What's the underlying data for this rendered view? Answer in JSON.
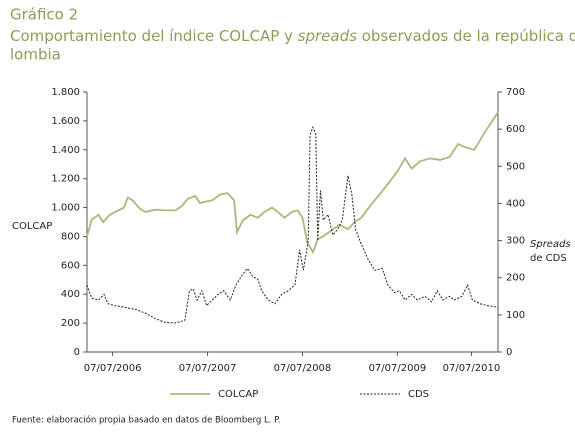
{
  "chart_data": {
    "type": "line",
    "title": "Gráfico 2",
    "subtitle": [
      "Comportamiento del índice COLCAP y ",
      "spreads",
      " observados de la república de Co-",
      "lombia"
    ],
    "ylabel": "COLCAP",
    "y2label": [
      "Spreads",
      "de CDS"
    ],
    "source": "Fuente: elaboración propia basado en datos de Bloomberg L. P.",
    "xlim": [
      2006.24,
      2010.57
    ],
    "xticks": [
      {
        "value": 2006.51,
        "label": "07/07/2006"
      },
      {
        "value": 2007.51,
        "label": "07/07/2007"
      },
      {
        "value": 2008.51,
        "label": "07/07/2008"
      },
      {
        "value": 2009.51,
        "label": "07/07/2009"
      },
      {
        "value": 2010.29,
        "label": "07/07/2010"
      }
    ],
    "ylim": [
      0,
      1800
    ],
    "yticks": [
      {
        "value": 0,
        "label": "0"
      },
      {
        "value": 200,
        "label": "200"
      },
      {
        "value": 400,
        "label": "400"
      },
      {
        "value": 600,
        "label": "600"
      },
      {
        "value": 800,
        "label": "800"
      },
      {
        "value": 1000,
        "label": "1.000"
      },
      {
        "value": 1200,
        "label": "1.200"
      },
      {
        "value": 1400,
        "label": "1.400"
      },
      {
        "value": 1600,
        "label": "1.600"
      },
      {
        "value": 1800,
        "label": "1.800"
      }
    ],
    "y2lim": [
      0,
      700
    ],
    "y2ticks": [
      0,
      100,
      200,
      300,
      400,
      500,
      600,
      700
    ],
    "series": [
      {
        "name": "COLCAP",
        "color": "#a9b97c",
        "dash": false,
        "x": [
          2006.24,
          2006.29,
          2006.36,
          2006.41,
          2006.48,
          2006.57,
          2006.63,
          2006.67,
          2006.72,
          2006.8,
          2006.86,
          2006.96,
          2007.06,
          2007.17,
          2007.24,
          2007.3,
          2007.38,
          2007.43,
          2007.48,
          2007.56,
          2007.64,
          2007.72,
          2007.79,
          2007.82,
          2007.88,
          2007.96,
          2008.04,
          2008.11,
          2008.19,
          2008.25,
          2008.32,
          2008.4,
          2008.46,
          2008.51,
          2008.56,
          2008.62,
          2008.67,
          2008.75,
          2008.83,
          2008.9,
          2008.99,
          2009.06,
          2009.13,
          2009.22,
          2009.32,
          2009.43,
          2009.51,
          2009.59,
          2009.66,
          2009.75,
          2009.85,
          2009.96,
          2010.06,
          2010.15,
          2010.22,
          2010.32,
          2010.43,
          2010.5,
          2010.57
        ],
        "values": [
          800,
          915,
          950,
          900,
          950,
          980,
          1000,
          1070,
          1050,
          990,
          970,
          985,
          980,
          980,
          1010,
          1060,
          1080,
          1030,
          1040,
          1050,
          1090,
          1100,
          1050,
          830,
          910,
          950,
          930,
          970,
          1000,
          970,
          930,
          970,
          980,
          930,
          760,
          690,
          780,
          810,
          850,
          880,
          850,
          900,
          930,
          1010,
          1090,
          1180,
          1250,
          1340,
          1270,
          1320,
          1340,
          1330,
          1350,
          1440,
          1420,
          1400,
          1520,
          1590,
          1660
        ]
      },
      {
        "name": "CDS",
        "color": "#222222",
        "dash": true,
        "axis": "y2",
        "x": [
          2006.24,
          2006.29,
          2006.36,
          2006.42,
          2006.46,
          2006.53,
          2006.64,
          2006.75,
          2006.85,
          2006.96,
          2007.06,
          2007.17,
          2007.27,
          2007.32,
          2007.36,
          2007.4,
          2007.45,
          2007.5,
          2007.56,
          2007.62,
          2007.68,
          2007.75,
          2007.81,
          2007.87,
          2007.93,
          2007.98,
          2008.04,
          2008.08,
          2008.15,
          2008.22,
          2008.29,
          2008.36,
          2008.43,
          2008.48,
          2008.52,
          2008.57,
          2008.59,
          2008.62,
          2008.65,
          2008.67,
          2008.7,
          2008.73,
          2008.78,
          2008.83,
          2008.88,
          2008.93,
          2008.99,
          2009.03,
          2009.07,
          2009.13,
          2009.2,
          2009.27,
          2009.35,
          2009.41,
          2009.48,
          2009.53,
          2009.59,
          2009.66,
          2009.72,
          2009.8,
          2009.87,
          2009.93,
          2009.99,
          2010.06,
          2010.11,
          2010.19,
          2010.25,
          2010.3,
          2010.38,
          2010.46,
          2010.57
        ],
        "values": [
          180,
          145,
          140,
          155,
          130,
          125,
          120,
          115,
          105,
          90,
          80,
          78,
          85,
          165,
          170,
          140,
          165,
          125,
          140,
          155,
          165,
          140,
          180,
          205,
          225,
          205,
          195,
          165,
          140,
          130,
          155,
          165,
          180,
          275,
          220,
          300,
          585,
          605,
          585,
          300,
          435,
          355,
          370,
          315,
          330,
          355,
          475,
          425,
          330,
          290,
          250,
          220,
          225,
          180,
          160,
          165,
          140,
          155,
          140,
          150,
          135,
          165,
          140,
          150,
          140,
          150,
          180,
          140,
          130,
          125,
          120
        ]
      }
    ]
  }
}
